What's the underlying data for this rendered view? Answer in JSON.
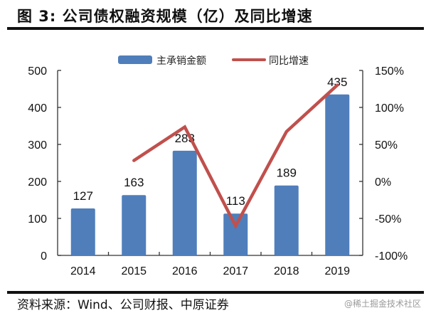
{
  "header": {
    "title": "图 3:  公司债权融资规模（亿）及同比增速"
  },
  "footer": {
    "source": "资料来源：Wind、公司财报、中原证券",
    "watermark": "@稀土掘金技术社区"
  },
  "legend": {
    "bar_label": "主承销金额",
    "line_label": "同比增速"
  },
  "colors": {
    "bar": "#4F7EBB",
    "line": "#C0504D",
    "axis": "#333333"
  },
  "axes": {
    "left_ticks": [
      "500",
      "400",
      "300",
      "200",
      "100",
      "0"
    ],
    "right_ticks": [
      "150%",
      "100%",
      "50%",
      "0%",
      "-50%",
      "-100%"
    ],
    "x_ticks": [
      "2014",
      "2015",
      "2016",
      "2017",
      "2018",
      "2019"
    ]
  },
  "bar_labels": [
    "127",
    "163",
    "283",
    "113",
    "189",
    "435"
  ],
  "chart_data": {
    "type": "bar+line",
    "title": "公司债权融资规模（亿）及同比增速",
    "categories": [
      "2014",
      "2015",
      "2016",
      "2017",
      "2018",
      "2019"
    ],
    "series": [
      {
        "name": "主承销金额",
        "type": "bar",
        "axis": "left",
        "values": [
          127,
          163,
          283,
          113,
          189,
          435
        ]
      },
      {
        "name": "同比增速",
        "type": "line",
        "axis": "right",
        "values": [
          null,
          28.3,
          73.6,
          -60.1,
          67.3,
          130.2
        ],
        "unit": "%"
      }
    ],
    "xlabel": "",
    "ylabel_left": "",
    "ylabel_right": "",
    "ylim_left": [
      0,
      500
    ],
    "ylim_right": [
      -100,
      150
    ],
    "grid": false,
    "legend_position": "top",
    "data_labels": true,
    "source": "资料来源：Wind、公司财报、中原证券"
  }
}
